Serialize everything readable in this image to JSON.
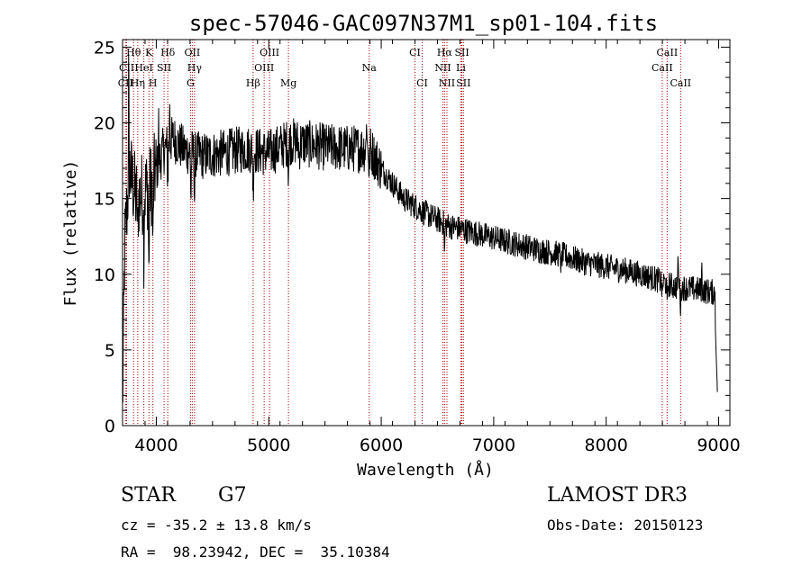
{
  "chart_data": {
    "type": "line",
    "title": "spec-57046-GAC097N37M1_sp01-104.fits",
    "xlabel": "Wavelength (Å)",
    "ylabel": "Flux (relative)",
    "xlim": [
      3700,
      9100
    ],
    "ylim": [
      0,
      25.5
    ],
    "xticks": [
      4000,
      5000,
      6000,
      7000,
      8000,
      9000
    ],
    "yticks": [
      0,
      5,
      10,
      15,
      20,
      25
    ],
    "xminor_step": 200,
    "yminor_step": 1,
    "line_color": "#000000",
    "marker_color": "#b00000",
    "series": [
      {
        "name": "spectrum",
        "knots": [
          [
            3700,
            1.0
          ],
          [
            3720,
            12.0
          ],
          [
            3760,
            17.0
          ],
          [
            3820,
            15.0
          ],
          [
            3900,
            15.5
          ],
          [
            3960,
            16.0
          ],
          [
            4050,
            18.0
          ],
          [
            4150,
            19.0
          ],
          [
            4250,
            18.2
          ],
          [
            4400,
            17.8
          ],
          [
            4600,
            18.0
          ],
          [
            4800,
            18.3
          ],
          [
            5000,
            18.0
          ],
          [
            5200,
            18.8
          ],
          [
            5500,
            18.4
          ],
          [
            5700,
            18.3
          ],
          [
            5900,
            18.3
          ],
          [
            6000,
            17.0
          ],
          [
            6200,
            15.0
          ],
          [
            6400,
            14.0
          ],
          [
            6600,
            13.2
          ],
          [
            6800,
            12.8
          ],
          [
            7000,
            12.4
          ],
          [
            7200,
            12.0
          ],
          [
            7400,
            11.6
          ],
          [
            7600,
            11.3
          ],
          [
            7800,
            10.8
          ],
          [
            8000,
            10.5
          ],
          [
            8200,
            10.2
          ],
          [
            8400,
            9.8
          ],
          [
            8600,
            9.2
          ],
          [
            8800,
            9.0
          ],
          [
            8960,
            8.8
          ]
        ],
        "dips": [
          [
            3835,
            3.0
          ],
          [
            3889,
            3.5
          ],
          [
            3934,
            6.0
          ],
          [
            3970,
            5.0
          ],
          [
            4102,
            2.5
          ],
          [
            4308,
            3.0
          ],
          [
            4340,
            3.0
          ],
          [
            4861,
            3.0
          ],
          [
            5175,
            2.0
          ],
          [
            5270,
            1.0
          ],
          [
            5893,
            2.0
          ],
          [
            6563,
            2.0
          ],
          [
            7600,
            1.0
          ],
          [
            8498,
            1.0
          ],
          [
            8542,
            1.5
          ],
          [
            8662,
            1.5
          ]
        ],
        "spikes": [
          [
            3755,
            7.0
          ],
          [
            4020,
            3.0
          ],
          [
            4120,
            3.0
          ],
          [
            5870,
            3.0
          ],
          [
            8640,
            2.5
          ],
          [
            8850,
            1.5
          ]
        ],
        "noise_amplitude": 1.6,
        "end_drop": [
          [
            8970,
            6.5
          ],
          [
            8990,
            2.0
          ]
        ]
      }
    ],
    "lines": [
      {
        "label": "Hθ",
        "wavelength": 3798,
        "row": 1
      },
      {
        "label": "K",
        "wavelength": 3934,
        "row": 1
      },
      {
        "label": "Hδ",
        "wavelength": 4102,
        "row": 1
      },
      {
        "label": "OII",
        "wavelength": 4320,
        "row": 1
      },
      {
        "label": "OIII",
        "wavelength": 5007,
        "row": 1
      },
      {
        "label": "CI",
        "wavelength": 6300,
        "row": 1
      },
      {
        "label": "Hα",
        "wavelength": 6563,
        "row": 1
      },
      {
        "label": "SII",
        "wavelength": 6717,
        "row": 1
      },
      {
        "label": "CaII",
        "wavelength": 8542,
        "row": 1
      },
      {
        "label": "CII",
        "wavelength": 3736,
        "row": 2
      },
      {
        "label": "HeI",
        "wavelength": 3889,
        "row": 2
      },
      {
        "label": "SII",
        "wavelength": 4069,
        "row": 2
      },
      {
        "label": "Hγ",
        "wavelength": 4340,
        "row": 2
      },
      {
        "label": "OIII",
        "wavelength": 4959,
        "row": 2
      },
      {
        "label": "Na",
        "wavelength": 5893,
        "row": 2
      },
      {
        "label": "NII",
        "wavelength": 6548,
        "row": 2
      },
      {
        "label": "Li",
        "wavelength": 6708,
        "row": 2
      },
      {
        "label": "CaII",
        "wavelength": 8498,
        "row": 2
      },
      {
        "label": "CII",
        "wavelength": 3726,
        "row": 3
      },
      {
        "label": "Hη",
        "wavelength": 3835,
        "row": 3
      },
      {
        "label": "H",
        "wavelength": 3970,
        "row": 3
      },
      {
        "label": "G",
        "wavelength": 4304,
        "row": 3
      },
      {
        "label": "Hβ",
        "wavelength": 4861,
        "row": 3
      },
      {
        "label": "Mg",
        "wavelength": 5175,
        "row": 3
      },
      {
        "label": "CI",
        "wavelength": 6364,
        "row": 3
      },
      {
        "label": "NII",
        "wavelength": 6584,
        "row": 3
      },
      {
        "label": "SII",
        "wavelength": 6731,
        "row": 3
      },
      {
        "label": "CaII",
        "wavelength": 8662,
        "row": 3
      }
    ]
  },
  "info": {
    "object_class": "STAR",
    "subclass": "G7",
    "survey": "LAMOST DR3",
    "redshift": "cz = -35.2 ± 13.8 km/s",
    "obs_date": "Obs-Date: 20150123",
    "coords": "RA =  98.23942, DEC =  35.10384"
  }
}
